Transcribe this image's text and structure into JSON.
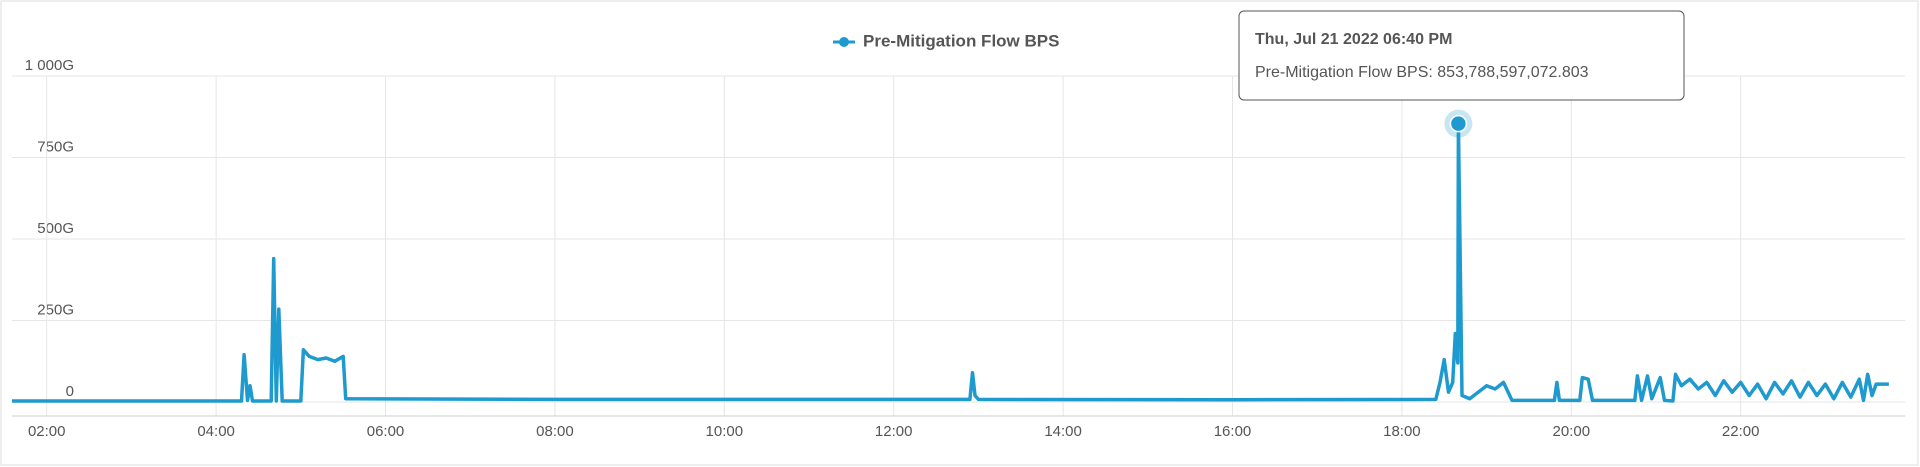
{
  "chart_data": {
    "type": "line",
    "x": [
      1.59,
      4.3,
      4.33,
      4.37,
      4.4,
      4.43,
      4.65,
      4.68,
      4.71,
      4.74,
      4.78,
      5.0,
      5.03,
      5.1,
      5.2,
      5.3,
      5.4,
      5.5,
      5.53,
      8,
      12,
      12.9,
      12.93,
      12.96,
      13.0,
      16,
      18.4,
      18.45,
      18.5,
      18.55,
      18.6,
      18.63,
      18.66,
      18.667,
      18.71,
      18.8,
      19.0,
      19.1,
      19.2,
      19.3,
      19.8,
      19.83,
      19.86,
      20.1,
      20.13,
      20.2,
      20.25,
      20.75,
      20.78,
      20.83,
      20.9,
      20.95,
      21.05,
      21.1,
      21.2,
      21.23,
      21.3,
      21.4,
      21.5,
      21.6,
      21.7,
      21.8,
      21.9,
      22.0,
      22.1,
      22.2,
      22.3,
      22.4,
      22.5,
      22.6,
      22.7,
      22.8,
      22.9,
      23.0,
      23.1,
      23.2,
      23.3,
      23.4,
      23.45,
      23.5,
      23.55,
      23.6,
      23.75
    ],
    "series": [
      {
        "name": "Pre-Mitigation Flow BPS",
        "color": "#1f9ace",
        "values": [
          3,
          3,
          145,
          5,
          50,
          3,
          3,
          440,
          3,
          285,
          3,
          3,
          160,
          140,
          130,
          135,
          125,
          140,
          10,
          8,
          8,
          8,
          90,
          20,
          8,
          7,
          8,
          60,
          130,
          30,
          60,
          210,
          120,
          853.788597072803,
          20,
          10,
          50,
          40,
          60,
          5,
          5,
          60,
          5,
          5,
          75,
          70,
          5,
          5,
          80,
          5,
          80,
          10,
          75,
          5,
          3,
          85,
          50,
          70,
          40,
          60,
          20,
          65,
          30,
          60,
          20,
          55,
          10,
          60,
          25,
          65,
          15,
          60,
          20,
          55,
          10,
          60,
          15,
          70,
          5,
          85,
          20,
          55,
          55
        ]
      }
    ],
    "xlim": [
      1.59,
      23.94
    ],
    "xticks": [
      {
        "value": 2,
        "label": "02:00"
      },
      {
        "value": 4,
        "label": "04:00"
      },
      {
        "value": 6,
        "label": "06:00"
      },
      {
        "value": 8,
        "label": "08:00"
      },
      {
        "value": 10,
        "label": "10:00"
      },
      {
        "value": 12,
        "label": "12:00"
      },
      {
        "value": 14,
        "label": "14:00"
      },
      {
        "value": 16,
        "label": "16:00"
      },
      {
        "value": 18,
        "label": "18:00"
      },
      {
        "value": 20,
        "label": "20:00"
      },
      {
        "value": 22,
        "label": "22:00"
      }
    ],
    "ylim": [
      0,
      1000
    ],
    "yticks": [
      0,
      {
        "value": 250,
        "label": "250G"
      },
      {
        "value": 500,
        "label": "500G"
      },
      {
        "value": 750,
        "label": "750G"
      },
      {
        "value": 1000,
        "label": "1 000G"
      }
    ],
    "grid": true,
    "legend": "top",
    "tooltip": {
      "title": "Thu, Jul 21 2022 06:40 PM",
      "point": 33,
      "value_label": "853,788,597,072.803"
    }
  }
}
